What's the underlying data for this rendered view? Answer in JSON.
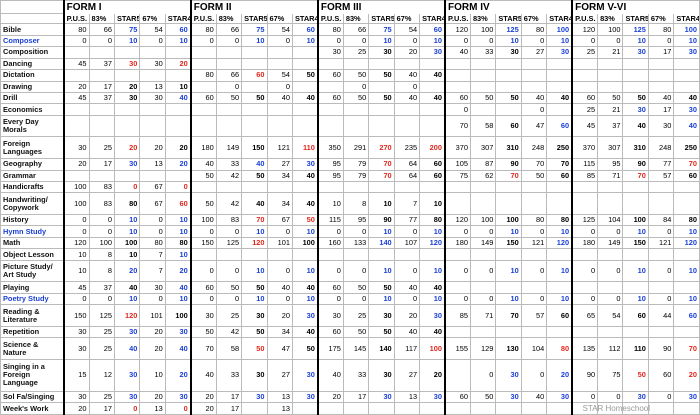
{
  "header": {
    "forms": [
      "FORM I",
      "FORM II",
      "FORM III",
      "FORM IV",
      "FORM V-VI"
    ],
    "columns": [
      "P.U.S.",
      "83%",
      "STAR5",
      "67%",
      "STAR4"
    ],
    "subject_color": "#1a3fd6",
    "blue": "#1a3fd6",
    "red": "#e0281e"
  },
  "rows": [
    {
      "subject": "Bible",
      "cells": [
        80,
        66,
        75,
        54,
        60,
        80,
        66,
        75,
        54,
        60,
        80,
        66,
        75,
        54,
        60,
        120,
        100,
        125,
        80,
        100,
        120,
        100,
        125,
        80,
        100
      ],
      "blue": [
        2,
        4,
        7,
        9,
        12,
        14,
        17,
        19,
        22,
        24
      ]
    },
    {
      "subject": "Composer",
      "subject_blue": true,
      "cells": [
        0,
        0,
        10,
        0,
        10,
        0,
        0,
        10,
        0,
        10,
        0,
        0,
        10,
        0,
        10,
        0,
        0,
        10,
        0,
        10,
        0,
        0,
        10,
        0,
        10
      ],
      "blue": [
        2,
        4,
        7,
        9,
        12,
        14,
        17,
        19,
        22,
        24
      ]
    },
    {
      "subject": "Composition",
      "cells": [
        null,
        null,
        null,
        null,
        null,
        null,
        null,
        null,
        null,
        null,
        30,
        25,
        30,
        20,
        30,
        40,
        33,
        30,
        27,
        30,
        25,
        21,
        30,
        17,
        30
      ],
      "blue": [
        14,
        19,
        22,
        24
      ]
    },
    {
      "subject": "Dancing",
      "cells": [
        45,
        37,
        30,
        30,
        20,
        null,
        null,
        null,
        null,
        null,
        null,
        null,
        null,
        null,
        null,
        null,
        null,
        null,
        null,
        null,
        null,
        null,
        null,
        null,
        null
      ],
      "red": [
        2,
        4
      ]
    },
    {
      "subject": "Dictation",
      "cells": [
        null,
        null,
        null,
        null,
        null,
        80,
        66,
        60,
        54,
        50,
        60,
        50,
        50,
        40,
        40,
        null,
        null,
        null,
        null,
        null,
        null,
        null,
        null,
        null,
        null
      ],
      "red": [
        7
      ]
    },
    {
      "subject": "Drawing",
      "cells": [
        20,
        17,
        20,
        13,
        10,
        null,
        0,
        null,
        0,
        null,
        null,
        0,
        null,
        0,
        null,
        null,
        null,
        null,
        null,
        null,
        null,
        null,
        null,
        null,
        null
      ]
    },
    {
      "subject": "Drill",
      "cells": [
        45,
        37,
        30,
        30,
        40,
        60,
        50,
        50,
        40,
        40,
        60,
        50,
        50,
        40,
        40,
        60,
        50,
        50,
        40,
        40,
        60,
        50,
        50,
        40,
        40
      ],
      "blue": [
        4
      ]
    },
    {
      "subject": "Economics",
      "cells": [
        null,
        null,
        null,
        null,
        null,
        null,
        null,
        null,
        null,
        null,
        null,
        null,
        null,
        null,
        null,
        0,
        null,
        null,
        0,
        null,
        25,
        21,
        30,
        17,
        30
      ],
      "blue": [
        22,
        24
      ]
    },
    {
      "subject": "Every Day Morals",
      "cells": [
        null,
        null,
        null,
        null,
        null,
        null,
        null,
        null,
        null,
        null,
        null,
        null,
        null,
        null,
        null,
        70,
        58,
        60,
        47,
        60,
        45,
        37,
        40,
        30,
        40
      ],
      "blue": [
        19,
        24
      ]
    },
    {
      "subject": "Foreign Languages",
      "cells": [
        30,
        25,
        20,
        20,
        20,
        180,
        149,
        150,
        121,
        110,
        350,
        291,
        270,
        235,
        200,
        370,
        307,
        310,
        248,
        250,
        370,
        307,
        310,
        248,
        250
      ],
      "red": [
        2,
        9,
        12,
        14
      ]
    },
    {
      "subject": "Geography",
      "cells": [
        20,
        17,
        30,
        13,
        20,
        40,
        33,
        40,
        27,
        30,
        95,
        79,
        70,
        64,
        60,
        105,
        87,
        90,
        70,
        70,
        115,
        95,
        90,
        77,
        70
      ],
      "blue": [
        2,
        4,
        7,
        9
      ],
      "red": [
        12,
        24
      ]
    },
    {
      "subject": "Grammar",
      "cells": [
        null,
        null,
        null,
        null,
        null,
        50,
        42,
        50,
        34,
        40,
        95,
        79,
        70,
        64,
        60,
        75,
        62,
        70,
        50,
        60,
        85,
        71,
        70,
        57,
        60
      ],
      "red": [
        12,
        17,
        22
      ]
    },
    {
      "subject": "Handicrafts",
      "cells": [
        100,
        83,
        0,
        67,
        0,
        null,
        null,
        null,
        null,
        null,
        null,
        null,
        null,
        null,
        null,
        null,
        null,
        null,
        null,
        null,
        null,
        null,
        null,
        null,
        null
      ],
      "red": [
        2,
        4
      ]
    },
    {
      "subject": "Handwriting/ Copywork",
      "cells": [
        100,
        83,
        80,
        67,
        60,
        50,
        42,
        40,
        34,
        40,
        10,
        8,
        10,
        7,
        10,
        null,
        null,
        null,
        null,
        null,
        null,
        null,
        null,
        null,
        null
      ],
      "red": [
        4
      ]
    },
    {
      "subject": "History",
      "cells": [
        0,
        0,
        10,
        0,
        10,
        100,
        83,
        70,
        67,
        50,
        115,
        95,
        90,
        77,
        80,
        120,
        100,
        100,
        80,
        80,
        125,
        104,
        100,
        84,
        80
      ],
      "blue": [
        2,
        4
      ],
      "red": [
        7,
        9
      ]
    },
    {
      "subject": "Hymn Study",
      "subject_blue": true,
      "cells": [
        0,
        0,
        10,
        0,
        10,
        0,
        0,
        10,
        0,
        10,
        0,
        0,
        10,
        0,
        10,
        0,
        0,
        10,
        0,
        10,
        0,
        0,
        10,
        0,
        10
      ],
      "blue": [
        2,
        4,
        7,
        9,
        12,
        14,
        17,
        19,
        22,
        24
      ]
    },
    {
      "subject": "Math",
      "cells": [
        120,
        100,
        100,
        80,
        80,
        150,
        125,
        120,
        101,
        100,
        160,
        133,
        140,
        107,
        120,
        180,
        149,
        150,
        121,
        120,
        180,
        149,
        150,
        121,
        120
      ],
      "red": [
        7
      ],
      "blue": [
        12,
        14,
        19,
        24
      ]
    },
    {
      "subject": "Object Lesson",
      "cells": [
        10,
        8,
        10,
        7,
        10,
        null,
        null,
        null,
        null,
        null,
        null,
        null,
        null,
        null,
        null,
        null,
        null,
        null,
        null,
        null,
        null,
        null,
        null,
        null,
        null
      ],
      "blue": [
        4
      ]
    },
    {
      "subject": "Picture Study/ Art Study",
      "cells": [
        10,
        8,
        20,
        7,
        20,
        0,
        0,
        10,
        0,
        10,
        0,
        0,
        10,
        0,
        10,
        0,
        0,
        10,
        0,
        10,
        0,
        0,
        10,
        0,
        10
      ],
      "blue": [
        2,
        4,
        7,
        9,
        12,
        14,
        17,
        19,
        22,
        24
      ]
    },
    {
      "subject": "Playing",
      "cells": [
        45,
        37,
        40,
        30,
        40,
        60,
        50,
        50,
        40,
        40,
        60,
        50,
        50,
        40,
        40,
        null,
        null,
        null,
        null,
        null,
        null,
        null,
        null,
        null,
        null
      ],
      "blue": [
        4
      ]
    },
    {
      "subject": "Poetry Study",
      "subject_blue": true,
      "cells": [
        0,
        0,
        10,
        0,
        10,
        0,
        0,
        10,
        0,
        10,
        0,
        0,
        10,
        0,
        10,
        0,
        0,
        10,
        0,
        10,
        0,
        0,
        10,
        0,
        10
      ],
      "blue": [
        2,
        4,
        7,
        9,
        12,
        14,
        17,
        19,
        22,
        24
      ]
    },
    {
      "subject": "Reading & Literature",
      "cells": [
        150,
        125,
        120,
        101,
        100,
        30,
        25,
        30,
        20,
        30,
        30,
        25,
        30,
        20,
        30,
        85,
        71,
        70,
        57,
        60,
        65,
        54,
        60,
        44,
        60
      ],
      "red": [
        2
      ],
      "blue": [
        9,
        14,
        24
      ]
    },
    {
      "subject": "Repetition",
      "cells": [
        30,
        25,
        30,
        20,
        30,
        50,
        42,
        50,
        34,
        40,
        60,
        50,
        50,
        40,
        40,
        null,
        null,
        null,
        null,
        null,
        null,
        null,
        null,
        null,
        null
      ],
      "blue": [
        2,
        4
      ]
    },
    {
      "subject": "Science & Nature",
      "cells": [
        30,
        25,
        40,
        20,
        40,
        70,
        58,
        50,
        47,
        50,
        175,
        145,
        140,
        117,
        100,
        155,
        129,
        130,
        104,
        80,
        135,
        112,
        110,
        90,
        70
      ],
      "blue": [
        2,
        4
      ],
      "red": [
        7,
        14,
        19,
        24
      ]
    },
    {
      "subject": "Singing in a Foreign Language",
      "cells": [
        15,
        12,
        30,
        10,
        20,
        40,
        33,
        30,
        27,
        30,
        40,
        33,
        30,
        27,
        20,
        null,
        0,
        30,
        0,
        20,
        90,
        75,
        50,
        60,
        20
      ],
      "blue": [
        2,
        4,
        9,
        17,
        19
      ],
      "red": [
        22,
        24
      ]
    },
    {
      "subject": "Sol Fa/Singing",
      "cells": [
        30,
        25,
        30,
        20,
        30,
        20,
        17,
        30,
        13,
        30,
        20,
        17,
        30,
        13,
        30,
        60,
        50,
        30,
        40,
        30,
        0,
        0,
        30,
        0,
        30
      ],
      "blue": [
        2,
        4,
        7,
        9,
        12,
        14,
        17,
        19,
        22,
        24
      ]
    },
    {
      "subject": "Week's Work",
      "cells": [
        20,
        17,
        0,
        13,
        0,
        20,
        17,
        null,
        13,
        null,
        null,
        null,
        null,
        null,
        null,
        null,
        null,
        null,
        null,
        null,
        null,
        null,
        null,
        null,
        null
      ],
      "red": [
        2,
        4
      ]
    }
  ],
  "watermark": "STAR Homeschool"
}
